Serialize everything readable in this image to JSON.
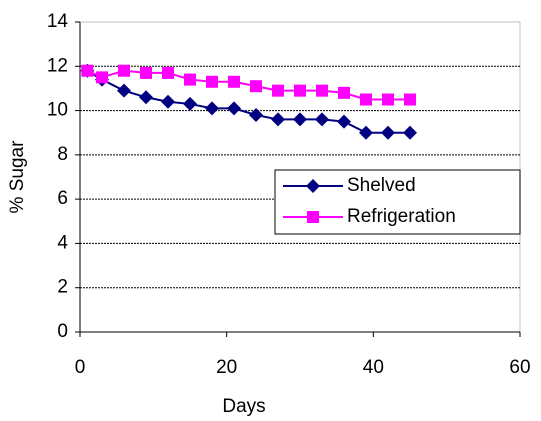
{
  "chart_data": {
    "type": "line",
    "xlabel": "Days",
    "ylabel": "% Sugar",
    "xlim": [
      0,
      60
    ],
    "xticks": [
      0,
      20,
      40,
      60
    ],
    "ylim": [
      0,
      14
    ],
    "yticks": [
      0,
      2,
      4,
      6,
      8,
      10,
      12,
      14
    ],
    "grid": true,
    "legend": "right",
    "series": [
      {
        "name": "Shelved",
        "color": "#000080",
        "x": [
          1,
          3,
          6,
          9,
          12,
          15,
          18,
          21,
          24,
          27,
          30,
          33,
          36,
          39,
          42,
          45
        ],
        "values": [
          11.8,
          11.4,
          10.9,
          10.6,
          10.4,
          10.3,
          10.1,
          10.1,
          9.8,
          9.6,
          9.6,
          9.6,
          9.5,
          9.0,
          9.0,
          9.0
        ]
      },
      {
        "name": "Refrigeration",
        "color": "#ff00ff",
        "x": [
          1,
          3,
          6,
          9,
          12,
          15,
          18,
          21,
          24,
          27,
          30,
          33,
          36,
          39,
          42,
          45
        ],
        "values": [
          11.8,
          11.5,
          11.8,
          11.7,
          11.7,
          11.4,
          11.3,
          11.3,
          11.1,
          10.9,
          10.9,
          10.9,
          10.8,
          10.5,
          10.5,
          10.5
        ]
      }
    ]
  }
}
